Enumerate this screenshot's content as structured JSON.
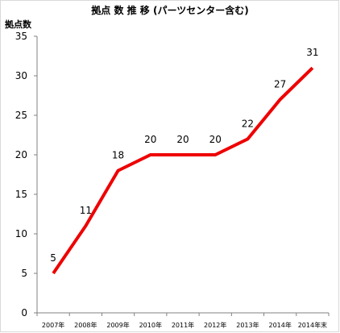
{
  "chart_data": {
    "type": "line",
    "title": "拠点 数 推 移 (パーツセンター含む)",
    "ylabel": "拠点数",
    "xlabel": "",
    "categories": [
      "2007年",
      "2008年",
      "2009年",
      "2010年",
      "2011年",
      "2012年",
      "2013年",
      "2014年",
      "2014年末"
    ],
    "series": [
      {
        "values": [
          5,
          11,
          18,
          20,
          20,
          20,
          22,
          27,
          31
        ]
      }
    ],
    "ylim": [
      0,
      35
    ],
    "yticks": [
      "0",
      "5",
      "10",
      "15",
      "20",
      "25",
      "30",
      "35"
    ],
    "line_color": "#ee0000",
    "grid": false,
    "legend": "none"
  }
}
